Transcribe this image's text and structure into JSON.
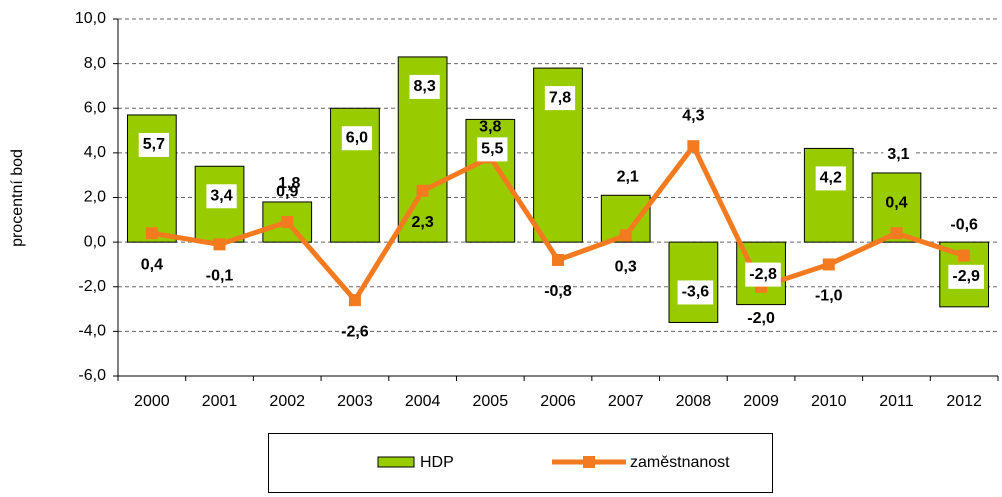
{
  "chart_data": {
    "type": "bar+line",
    "y_axis_label": "procentní bod",
    "categories": [
      "2000",
      "2001",
      "2002",
      "2003",
      "2004",
      "2005",
      "2006",
      "2007",
      "2008",
      "2009",
      "2010",
      "2011",
      "2012"
    ],
    "series": [
      {
        "name": "HDP",
        "type": "bar",
        "color": "#99cc00",
        "values": [
          5.7,
          3.4,
          1.8,
          6.0,
          8.3,
          5.5,
          7.8,
          2.1,
          -3.6,
          -2.8,
          4.2,
          3.1,
          -2.9
        ],
        "value_labels": [
          "5,7",
          "3,4",
          "1,8",
          "6,0",
          "8,3",
          "5,5",
          "7,8",
          "2,1",
          "-3,6",
          "-2,8",
          "4,2",
          "3,1",
          "-2,9"
        ]
      },
      {
        "name": "zaměstnanost",
        "type": "line",
        "color": "#f47a20",
        "values": [
          0.4,
          -0.1,
          0.9,
          -2.6,
          2.3,
          3.8,
          -0.8,
          0.3,
          4.3,
          -2.0,
          -1.0,
          0.4,
          -0.6
        ],
        "value_labels": [
          "0,4",
          "-0,1",
          "0,9",
          "-2,6",
          "2,3",
          "3,8",
          "-0,8",
          "0,3",
          "4,3",
          "-2,0",
          "-1,0",
          "0,4",
          "-0,6"
        ]
      }
    ],
    "ylim": [
      -6,
      10
    ],
    "yticks": [
      {
        "value": -6,
        "label": "-6,0"
      },
      {
        "value": -4,
        "label": "-4,0"
      },
      {
        "value": -2,
        "label": "-2,0"
      },
      {
        "value": 0,
        "label": "0,0"
      },
      {
        "value": 2,
        "label": "2,0"
      },
      {
        "value": 4,
        "label": "4,0"
      },
      {
        "value": 6,
        "label": "6,0"
      },
      {
        "value": 8,
        "label": "8,0"
      },
      {
        "value": 10,
        "label": "10,0"
      }
    ],
    "grid": true,
    "legend": "bottom"
  }
}
